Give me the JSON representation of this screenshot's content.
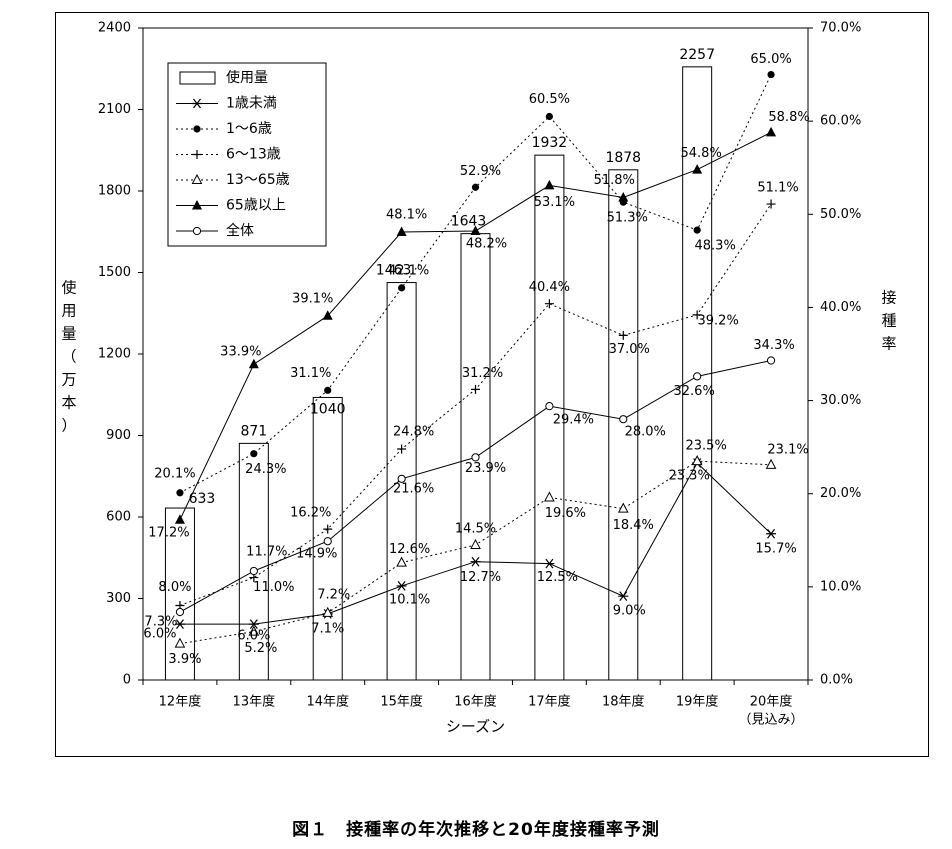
{
  "caption": "図１　接種率の年次推移と20年度接種率予測",
  "chart_data": {
    "type": "bar",
    "categories": [
      "12年度",
      "13年度",
      "14年度",
      "15年度",
      "16年度",
      "17年度",
      "18年度",
      "19年度",
      "20年度"
    ],
    "category_sublabels": [
      "",
      "",
      "",
      "",
      "",
      "",
      "",
      "",
      "（見込み）"
    ],
    "xlabel": "シーズン",
    "ylabel_left": "使用量（万本）",
    "ylabel_right": "接種率",
    "ylim_left": [
      0,
      2400
    ],
    "yticks_left": [
      "0",
      "300",
      "600",
      "900",
      "1200",
      "1500",
      "1800",
      "2100",
      "2400"
    ],
    "ylim_right": [
      0,
      70
    ],
    "yticks_right": [
      "0.0%",
      "10.0%",
      "20.0%",
      "30.0%",
      "40.0%",
      "50.0%",
      "60.0%",
      "70.0%"
    ],
    "grid": false,
    "legend_position": "top-left",
    "bars": {
      "name": "使用量",
      "axis": "left",
      "values": [
        633,
        871,
        1040,
        1463,
        1643,
        1932,
        1878,
        2257,
        null
      ],
      "labels": [
        "633",
        "871",
        "1040",
        "1463",
        "1643",
        "1932",
        "1878",
        "2257",
        ""
      ]
    },
    "series": [
      {
        "name": "1歳未満",
        "axis": "right",
        "marker": "asterisk",
        "line": "solid",
        "values": [
          6.0,
          6.0,
          7.1,
          10.1,
          12.7,
          12.5,
          9.0,
          23.3,
          15.7
        ],
        "labels": [
          "6.0%",
          "6.0%",
          "7.1%",
          "10.1%",
          "12.7%",
          "12.5%",
          "9.0%",
          "23.3%",
          "15.7%"
        ]
      },
      {
        "name": "1～6歳",
        "axis": "right",
        "marker": "dot",
        "line": "dotted",
        "values": [
          20.1,
          24.3,
          31.1,
          42.1,
          52.9,
          60.5,
          51.3,
          48.3,
          65.0
        ],
        "labels": [
          "20.1%",
          "24.3%",
          "31.1%",
          "42.1%",
          "52.9%",
          "60.5%",
          "51.3%",
          "48.3%",
          "65.0%"
        ]
      },
      {
        "name": "6～13歳",
        "axis": "right",
        "marker": "plus",
        "line": "dotted",
        "values": [
          8.0,
          11.0,
          16.2,
          24.8,
          31.2,
          40.4,
          37.0,
          39.2,
          51.1
        ],
        "labels": [
          "8.0%",
          "11.0%",
          "16.2%",
          "24.8%",
          "31.2%",
          "40.4%",
          "37.0%",
          "39.2%",
          "51.1%"
        ]
      },
      {
        "name": "13～65歳",
        "axis": "right",
        "marker": "open-triangle",
        "line": "dotted",
        "values": [
          3.9,
          5.2,
          7.2,
          12.6,
          14.5,
          19.6,
          18.4,
          23.5,
          23.1
        ],
        "labels": [
          "3.9%",
          "5.2%",
          "7.2%",
          "12.6%",
          "14.5%",
          "19.6%",
          "18.4%",
          "23.5%",
          "23.1%"
        ]
      },
      {
        "name": "65歳以上",
        "axis": "right",
        "marker": "filled-triangle",
        "line": "solid",
        "values": [
          17.2,
          33.9,
          39.1,
          48.1,
          48.2,
          53.1,
          51.8,
          54.8,
          58.8
        ],
        "labels": [
          "17.2%",
          "33.9%",
          "39.1%",
          "48.1%",
          "48.2%",
          "53.1%",
          "51.8%",
          "54.8%",
          "58.8%"
        ]
      },
      {
        "name": "全体",
        "axis": "right",
        "marker": "open-circle",
        "line": "solid",
        "values": [
          7.3,
          11.7,
          14.9,
          21.6,
          23.9,
          29.4,
          28.0,
          32.6,
          34.3
        ],
        "labels": [
          "7.3%",
          "11.7%",
          "14.9%",
          "21.6%",
          "23.9%",
          "29.4%",
          "28.0%",
          "32.6%",
          "34.3%"
        ]
      }
    ]
  }
}
